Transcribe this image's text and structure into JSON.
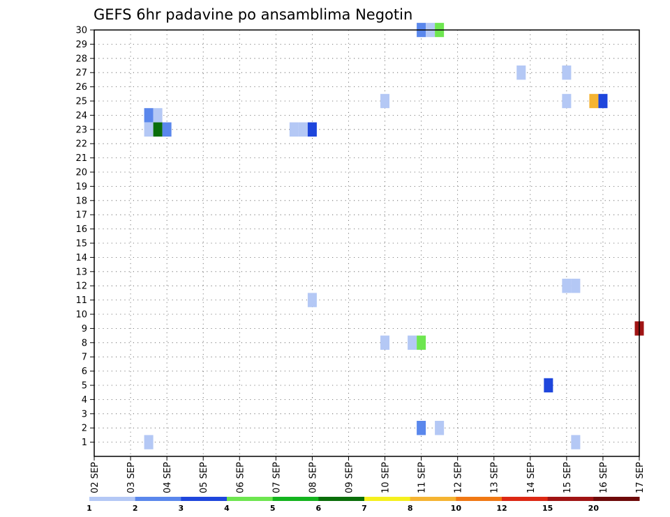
{
  "chart_data": {
    "type": "heatmap",
    "title": "GEFS 6hr padavine po ansamblima Negotin",
    "xlabel": "",
    "ylabel": "",
    "x_tick_labels": [
      "02 SEP",
      "03 SEP",
      "04 SEP",
      "05 SEP",
      "06 SEP",
      "07 SEP",
      "08 SEP",
      "09 SEP",
      "10 SEP",
      "11 SEP",
      "12 SEP",
      "13 SEP",
      "14 SEP",
      "15 SEP",
      "16 SEP",
      "17 SEP"
    ],
    "x_unit": "day index from 02 SEP (6-hour steps)",
    "xlim": [
      0,
      15
    ],
    "y_tick_labels": [
      "1",
      "2",
      "3",
      "4",
      "5",
      "6",
      "7",
      "8",
      "9",
      "10",
      "11",
      "12",
      "13",
      "14",
      "15",
      "16",
      "17",
      "18",
      "19",
      "20",
      "21",
      "22",
      "23",
      "24",
      "25",
      "26",
      "27",
      "28",
      "29",
      "30"
    ],
    "ylim": [
      0,
      30
    ],
    "grid": true,
    "colorbar": {
      "labels": [
        "1",
        "2",
        "3",
        "4",
        "5",
        "6",
        "7",
        "8",
        "10",
        "12",
        "15",
        "20"
      ],
      "colors": [
        "#b4c8f5",
        "#5a87ec",
        "#1e46dc",
        "#6ee650",
        "#14b41e",
        "#0a6e0a",
        "#f5f01e",
        "#f5b432",
        "#f07814",
        "#dc2814",
        "#a01414",
        "#6e0a0a"
      ]
    },
    "cells": [
      {
        "member": 30,
        "x": 9.0,
        "level": 2
      },
      {
        "member": 30,
        "x": 9.25,
        "level": 1
      },
      {
        "member": 30,
        "x": 9.5,
        "level": 4
      },
      {
        "member": 27,
        "x": 11.75,
        "level": 1
      },
      {
        "member": 27,
        "x": 13.0,
        "level": 1
      },
      {
        "member": 25,
        "x": 8.0,
        "level": 1
      },
      {
        "member": 25,
        "x": 13.0,
        "level": 1
      },
      {
        "member": 25,
        "x": 13.75,
        "level": 8
      },
      {
        "member": 25,
        "x": 14.0,
        "level": 3
      },
      {
        "member": 24,
        "x": 1.5,
        "level": 2
      },
      {
        "member": 24,
        "x": 1.75,
        "level": 1
      },
      {
        "member": 23,
        "x": 1.5,
        "level": 1
      },
      {
        "member": 23,
        "x": 1.75,
        "level": 6
      },
      {
        "member": 23,
        "x": 2.0,
        "level": 2
      },
      {
        "member": 23,
        "x": 5.5,
        "level": 1
      },
      {
        "member": 23,
        "x": 5.75,
        "level": 1
      },
      {
        "member": 23,
        "x": 6.0,
        "level": 3
      },
      {
        "member": 12,
        "x": 13.0,
        "level": 1
      },
      {
        "member": 12,
        "x": 13.25,
        "level": 1
      },
      {
        "member": 11,
        "x": 6.0,
        "level": 1
      },
      {
        "member": 9,
        "x": 15.0,
        "level": 11
      },
      {
        "member": 8,
        "x": 8.0,
        "level": 1
      },
      {
        "member": 8,
        "x": 8.75,
        "level": 1
      },
      {
        "member": 8,
        "x": 9.0,
        "level": 4
      },
      {
        "member": 5,
        "x": 12.5,
        "level": 3
      },
      {
        "member": 2,
        "x": 9.0,
        "level": 2
      },
      {
        "member": 2,
        "x": 9.5,
        "level": 1
      },
      {
        "member": 1,
        "x": 1.5,
        "level": 1
      },
      {
        "member": 1,
        "x": 13.25,
        "level": 1
      }
    ]
  }
}
